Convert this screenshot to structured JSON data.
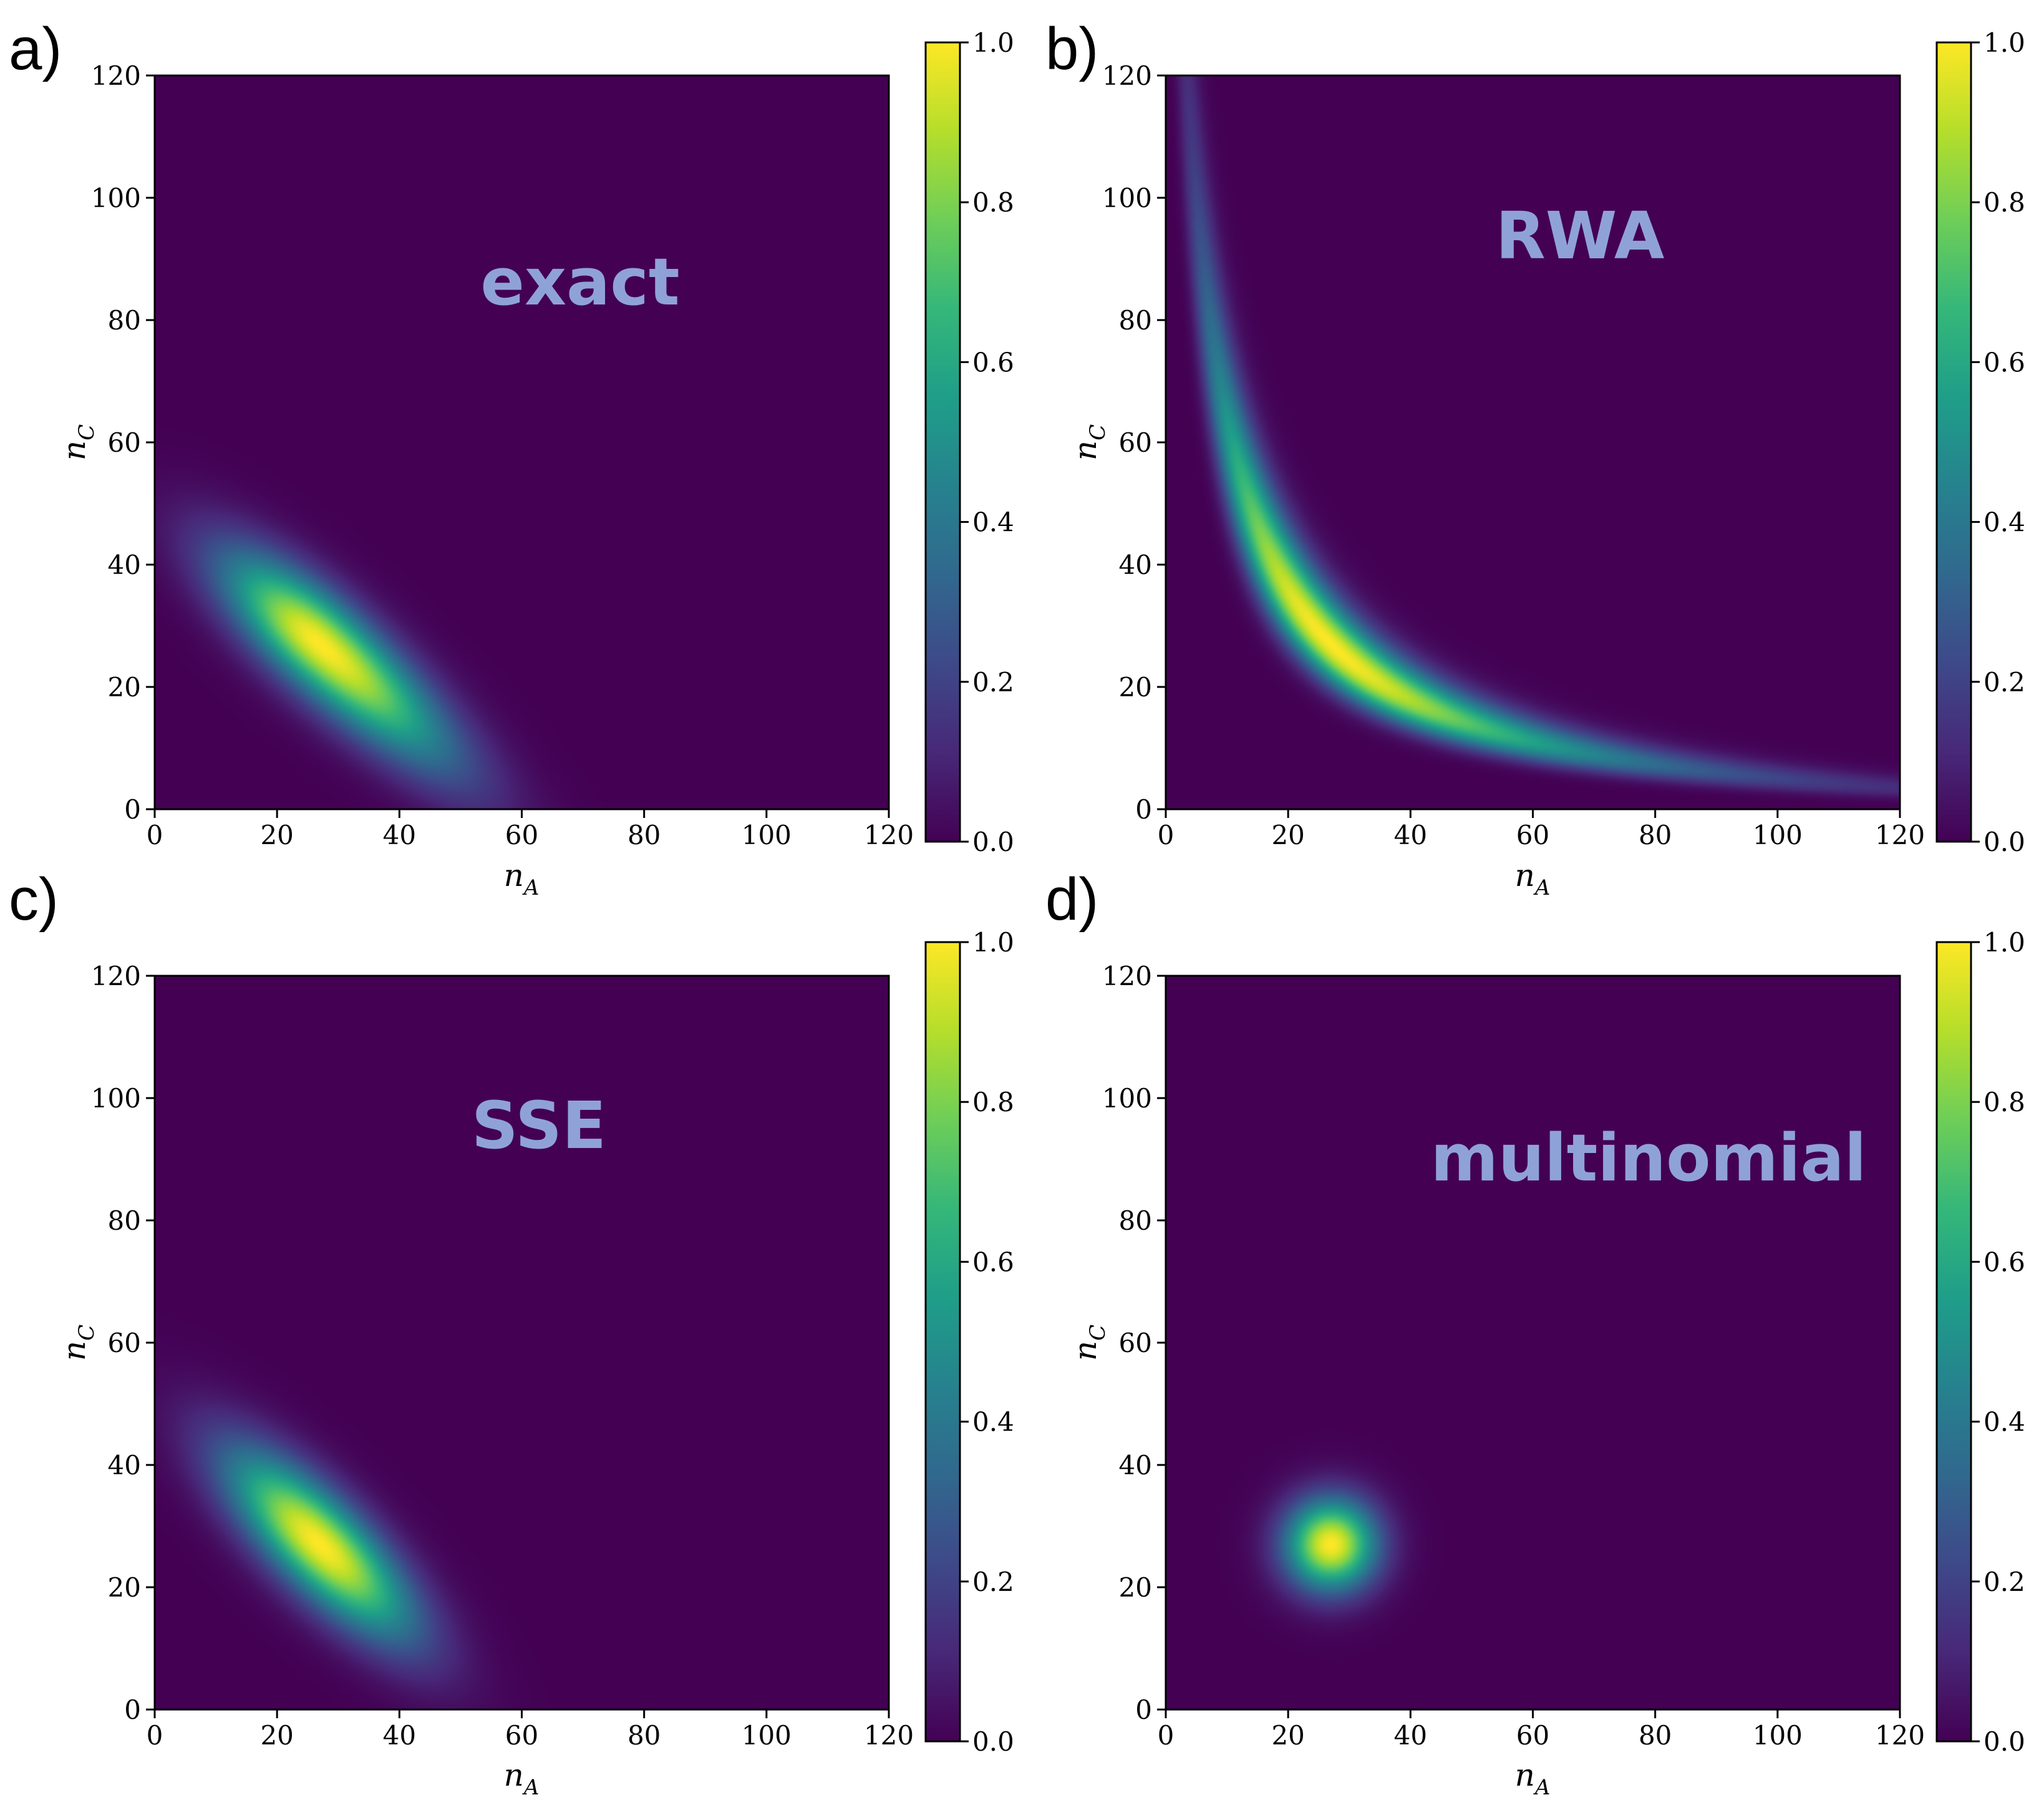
{
  "colors": {
    "viridis": [
      "#440154",
      "#482878",
      "#3e4989",
      "#31688e",
      "#26828e",
      "#1f9e89",
      "#35b779",
      "#6ece58",
      "#b5de2b",
      "#fde725"
    ],
    "annotation": "#8fa2d8"
  },
  "chart_data": [
    {
      "type": "heatmap",
      "panel_label": "a)",
      "annotation": "exact",
      "xlabel": "n",
      "xlabel_sub": "A",
      "ylabel": "n",
      "ylabel_sub": "C",
      "xlim": [
        0,
        120
      ],
      "ylim": [
        0,
        120
      ],
      "xticks": [
        "0",
        "20",
        "40",
        "60",
        "80",
        "100",
        "120"
      ],
      "yticks": [
        "0",
        "20",
        "40",
        "60",
        "80",
        "100",
        "120"
      ],
      "colorbar": {
        "range": [
          0.0,
          1.0
        ],
        "ticks": [
          "0.0",
          "0.2",
          "0.4",
          "0.6",
          "0.8",
          "1.0"
        ]
      },
      "distribution": {
        "shape": "skewed-gaussian",
        "peak": [
          27,
          27
        ],
        "sigma_along": 14,
        "sigma_across": 5,
        "angle_deg": -42
      }
    },
    {
      "type": "heatmap",
      "panel_label": "b)",
      "annotation": "RWA",
      "xlabel": "n",
      "xlabel_sub": "A",
      "ylabel": "n",
      "ylabel_sub": "C",
      "xlim": [
        0,
        120
      ],
      "ylim": [
        0,
        120
      ],
      "xticks": [
        "0",
        "20",
        "40",
        "60",
        "80",
        "100",
        "120"
      ],
      "yticks": [
        "0",
        "20",
        "40",
        "60",
        "80",
        "100",
        "120"
      ],
      "colorbar": {
        "range": [
          0.0,
          1.0
        ],
        "ticks": [
          "0.0",
          "0.2",
          "0.4",
          "0.6",
          "0.8",
          "1.0"
        ]
      },
      "distribution": {
        "shape": "hyperbolic-ridge",
        "peak": [
          27,
          27
        ],
        "ridge": "(n_A+5)(n_C+5)=1024",
        "log_sigma_across": 0.11,
        "log_sigma_along": 0.95
      }
    },
    {
      "type": "heatmap",
      "panel_label": "c)",
      "annotation": "SSE",
      "xlabel": "n",
      "xlabel_sub": "A",
      "ylabel": "n",
      "ylabel_sub": "C",
      "xlim": [
        0,
        120
      ],
      "ylim": [
        0,
        120
      ],
      "xticks": [
        "0",
        "20",
        "40",
        "60",
        "80",
        "100",
        "120"
      ],
      "yticks": [
        "0",
        "20",
        "40",
        "60",
        "80",
        "100",
        "120"
      ],
      "colorbar": {
        "range": [
          0.0,
          1.0
        ],
        "ticks": [
          "0.0",
          "0.2",
          "0.4",
          "0.6",
          "0.8",
          "1.0"
        ]
      },
      "distribution": {
        "shape": "gaussian",
        "peak": [
          27,
          27
        ],
        "sigma_along": 14,
        "sigma_across": 5,
        "angle_deg": -45
      }
    },
    {
      "type": "heatmap",
      "panel_label": "d)",
      "annotation": "multinomial",
      "xlabel": "n",
      "xlabel_sub": "A",
      "ylabel": "n",
      "ylabel_sub": "C",
      "xlim": [
        0,
        120
      ],
      "ylim": [
        0,
        120
      ],
      "xticks": [
        "0",
        "20",
        "40",
        "60",
        "80",
        "100",
        "120"
      ],
      "yticks": [
        "0",
        "20",
        "40",
        "60",
        "80",
        "100",
        "120"
      ],
      "colorbar": {
        "range": [
          0.0,
          1.0
        ],
        "ticks": [
          "0.0",
          "0.2",
          "0.4",
          "0.6",
          "0.8",
          "1.0"
        ]
      },
      "distribution": {
        "shape": "gaussian",
        "peak": [
          27,
          27
        ],
        "sigma_along": 5.2,
        "sigma_across": 5.2,
        "angle_deg": 0
      }
    }
  ]
}
